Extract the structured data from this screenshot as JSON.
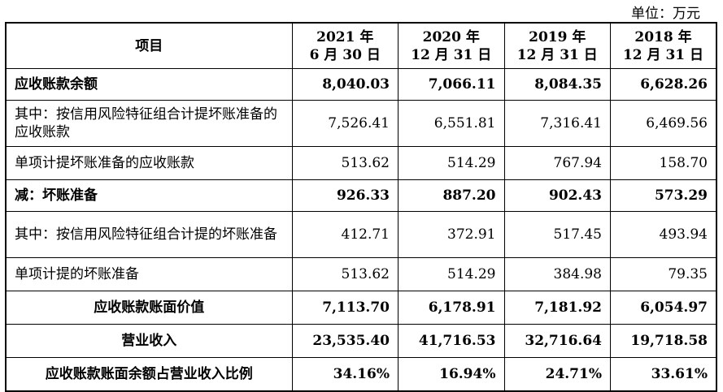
{
  "unit_label": "单位：万元",
  "header": {
    "item": "项目",
    "cols": [
      {
        "line1": "2021 年",
        "line2": "6 月 30 日"
      },
      {
        "line1": "2020 年",
        "line2": "12 月 31 日"
      },
      {
        "line1": "2019 年",
        "line2": "12 月 31 日"
      },
      {
        "line1": "2018 年",
        "line2": "12 月 31 日"
      }
    ]
  },
  "rows": [
    {
      "label": "应收账款余额",
      "values": [
        "8,040.03",
        "7,066.11",
        "8,084.35",
        "6,628.26"
      ]
    },
    {
      "label": "其中：按信用风险特征组合计提坏账准备的应收账款",
      "values": [
        "7,526.41",
        "6,551.81",
        "7,316.41",
        "6,469.56"
      ]
    },
    {
      "label": "单项计提坏账准备的应收账款",
      "values": [
        "513.62",
        "514.29",
        "767.94",
        "158.70"
      ]
    },
    {
      "label": "减：坏账准备",
      "values": [
        "926.33",
        "887.20",
        "902.43",
        "573.29"
      ]
    },
    {
      "label": "其中：按信用风险特征组合计提的坏账准备",
      "values": [
        "412.71",
        "372.91",
        "517.45",
        "493.94"
      ]
    },
    {
      "label": "单项计提的坏账准备",
      "values": [
        "513.62",
        "514.29",
        "384.98",
        "79.35"
      ]
    },
    {
      "label": "应收账款账面价值",
      "values": [
        "7,113.70",
        "6,178.91",
        "7,181.92",
        "6,054.97"
      ]
    },
    {
      "label": "营业收入",
      "values": [
        "23,535.40",
        "41,716.53",
        "32,716.64",
        "19,718.58"
      ]
    },
    {
      "label": "应收账款账面余额占营业收入比例",
      "values": [
        "34.16%",
        "16.94%",
        "24.71%",
        "33.61%"
      ]
    }
  ]
}
